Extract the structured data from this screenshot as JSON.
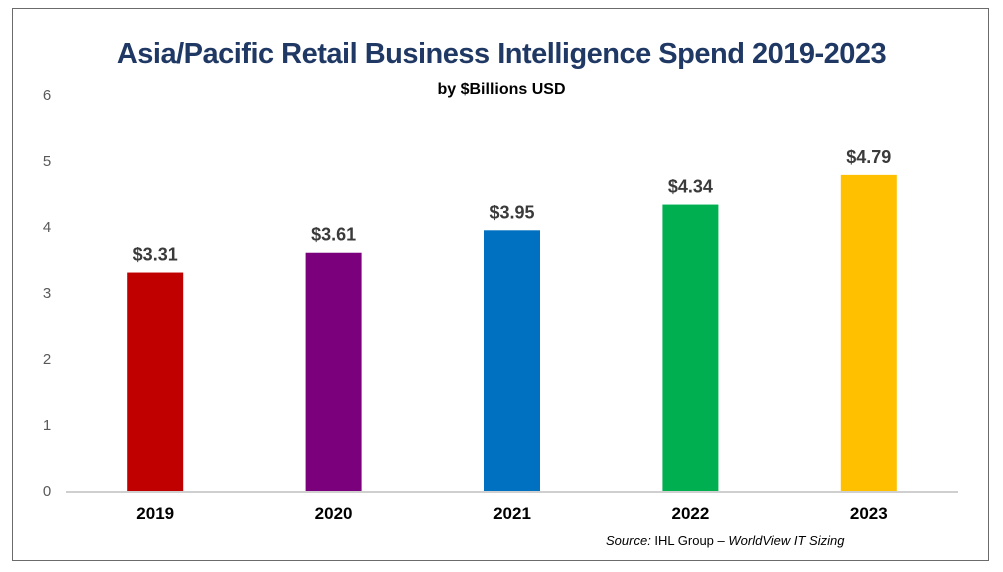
{
  "chart_data": {
    "type": "bar",
    "title": "Asia/Pacific Retail Business Intelligence Spend 2019-2023",
    "subtitle": "by $Billions USD",
    "categories": [
      "2019",
      "2020",
      "2021",
      "2022",
      "2023"
    ],
    "values": [
      3.31,
      3.61,
      3.95,
      4.34,
      4.79
    ],
    "data_labels": [
      "$3.31",
      "$3.61",
      "$3.95",
      "$4.34",
      "$4.79"
    ],
    "colors": [
      "#c00000",
      "#7b007b",
      "#0070c0",
      "#00b050",
      "#ffc000"
    ],
    "ylim": [
      0,
      6
    ],
    "yticks": [
      "0",
      "1",
      "2",
      "3",
      "4",
      "5",
      "6"
    ],
    "xlabel": "",
    "ylabel": "",
    "grid": false,
    "legend": "none"
  },
  "source": {
    "prefix": "Source:",
    "org": " IHL Group – ",
    "product": "WorldView IT Sizing"
  }
}
